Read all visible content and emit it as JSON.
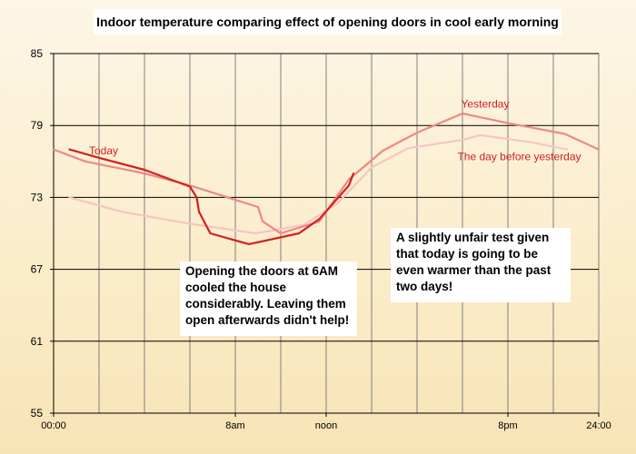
{
  "chart_data": {
    "type": "line",
    "title": "Indoor temperature comparing effect of opening doors in cool early morning",
    "xlabel": "",
    "ylabel": "",
    "xlim": [
      0,
      24
    ],
    "ylim": [
      55,
      85
    ],
    "y_ticks": [
      55,
      61,
      67,
      73,
      79,
      85
    ],
    "x_ticks": [
      {
        "value": 0,
        "label": "00:00"
      },
      {
        "value": 8,
        "label": "8am"
      },
      {
        "value": 12,
        "label": "noon"
      },
      {
        "value": 20,
        "label": "8pm"
      },
      {
        "value": 24,
        "label": "24:00"
      }
    ],
    "x_grid": [
      0,
      2,
      4,
      6,
      8,
      10,
      12,
      14,
      16,
      18,
      20,
      22,
      24
    ],
    "grid": true,
    "series": [
      {
        "name": "Today",
        "color": "#d42020",
        "points": [
          [
            0.7,
            77.0
          ],
          [
            2.0,
            76.3
          ],
          [
            4.0,
            75.3
          ],
          [
            6.0,
            73.9
          ],
          [
            6.3,
            73.0
          ],
          [
            6.4,
            71.8
          ],
          [
            6.9,
            70.0
          ],
          [
            8.6,
            69.1
          ],
          [
            10.8,
            70.0
          ],
          [
            11.7,
            71.2
          ],
          [
            12.4,
            72.7
          ],
          [
            13.0,
            74.0
          ],
          [
            13.2,
            75.0
          ]
        ]
      },
      {
        "name": "Yesterday",
        "color": "#ee8888",
        "points": [
          [
            0.0,
            77.0
          ],
          [
            1.4,
            76.0
          ],
          [
            4.0,
            75.0
          ],
          [
            6.0,
            74.0
          ],
          [
            9.0,
            72.2
          ],
          [
            9.2,
            71.0
          ],
          [
            10.0,
            70.0
          ],
          [
            11.7,
            71.0
          ],
          [
            13.0,
            74.5
          ],
          [
            14.5,
            76.9
          ],
          [
            16.0,
            78.4
          ],
          [
            18.0,
            80.0
          ],
          [
            20.0,
            79.2
          ],
          [
            22.5,
            78.3
          ],
          [
            24.0,
            77.0
          ]
        ]
      },
      {
        "name": "The day before yesterday",
        "color": "#f8c4c4",
        "points": [
          [
            0.7,
            73.0
          ],
          [
            3.0,
            71.8
          ],
          [
            6.0,
            70.8
          ],
          [
            8.9,
            70.0
          ],
          [
            11.0,
            70.7
          ],
          [
            12.5,
            72.5
          ],
          [
            14.0,
            75.5
          ],
          [
            15.6,
            77.1
          ],
          [
            18.0,
            77.8
          ],
          [
            18.8,
            78.2
          ],
          [
            21.0,
            77.6
          ],
          [
            22.6,
            77.0
          ]
        ]
      }
    ],
    "series_labels": [
      {
        "text": "Today",
        "color": "#d42020",
        "x": 2.2,
        "y": 76.9
      },
      {
        "text": "Yesterday",
        "color": "#d42020",
        "x": 19.0,
        "y": 80.8
      },
      {
        "text": "The day before yesterday",
        "color": "#d42020",
        "x": 20.5,
        "y": 76.4
      }
    ],
    "annotations": [
      {
        "text": "Opening the doors at 6AM cooled the house considerably.  Leaving them open afterwards didn't help!"
      },
      {
        "text": "A slightly unfair test given that today is going to be even warmer than the past two days!"
      }
    ]
  }
}
